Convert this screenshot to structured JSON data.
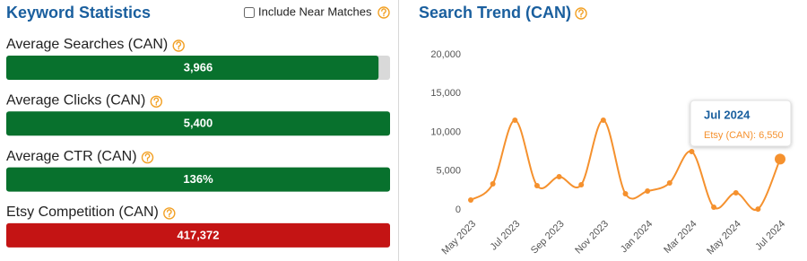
{
  "keyword_statistics": {
    "title": "Keyword Statistics",
    "near_matches_label": "Include Near Matches",
    "stats": [
      {
        "label": "Average Searches (CAN)",
        "value": "3,966",
        "bar_percent": 97,
        "color": "#08712d"
      },
      {
        "label": "Average Clicks (CAN)",
        "value": "5,400",
        "bar_percent": 100,
        "color": "#08712d"
      },
      {
        "label": "Average CTR (CAN)",
        "value": "136%",
        "bar_percent": 100,
        "color": "#08712d"
      },
      {
        "label": "Etsy Competition (CAN)",
        "value": "417,372",
        "bar_percent": 100,
        "color": "#c41414"
      }
    ]
  },
  "chart_data": {
    "type": "line",
    "title": "Search Trend (CAN)",
    "categories": [
      "May 2023",
      null,
      "Jul 2023",
      null,
      "Sep 2023",
      null,
      "Nov 2023",
      null,
      "Jan 2024",
      null,
      "Mar 2024",
      null,
      "May 2024",
      null,
      "Jul 2024"
    ],
    "series": [
      {
        "name": "Etsy (CAN)",
        "color": "#f5912e",
        "values": [
          1270,
          3350,
          11560,
          3120,
          4280,
          3240,
          11560,
          2080,
          2430,
          3470,
          7510,
          350,
          2200,
          100,
          6550
        ]
      }
    ],
    "ylim": [
      0,
      20000
    ],
    "yticks": [
      0,
      {
        "value": 5000,
        "label": "5,000"
      },
      {
        "value": 10000,
        "label": "10,000"
      },
      {
        "value": 15000,
        "label": "15,000"
      },
      {
        "value": 20000,
        "label": "20,000"
      }
    ],
    "grid": false,
    "tooltip": {
      "title": "Jul 2024",
      "text": "Etsy (CAN): 6,550"
    }
  }
}
